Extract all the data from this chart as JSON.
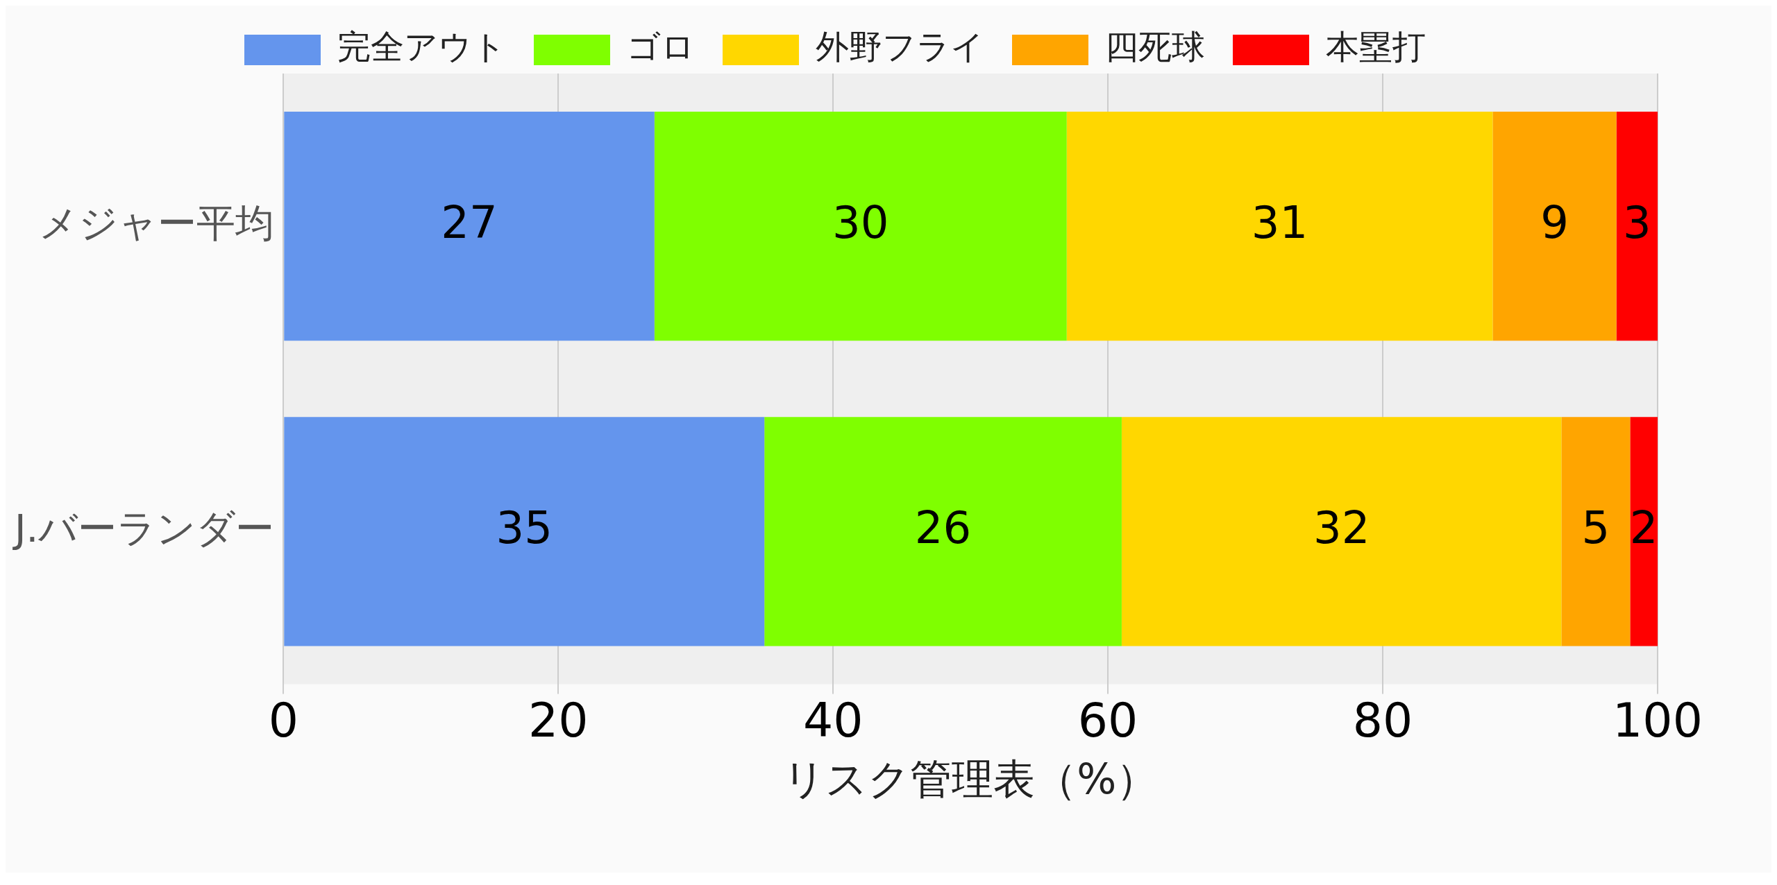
{
  "chart_data": {
    "type": "bar",
    "orientation": "horizontal",
    "stacked": true,
    "xlabel": "リスク管理表（%）",
    "categories": [
      "メジャー平均",
      "J.バーランダー"
    ],
    "series": [
      {
        "name": "完全アウト",
        "color": "#6495ed",
        "values": [
          27,
          35
        ]
      },
      {
        "name": "ゴロ",
        "color": "#7fff00",
        "values": [
          30,
          26
        ]
      },
      {
        "name": "外野フライ",
        "color": "#ffd700",
        "values": [
          31,
          32
        ]
      },
      {
        "name": "四死球",
        "color": "#ffa500",
        "values": [
          9,
          5
        ]
      },
      {
        "name": "本塁打",
        "color": "#ff0000",
        "values": [
          3,
          2
        ]
      }
    ],
    "xlim": [
      0,
      100
    ],
    "xticks": [
      0,
      20,
      40,
      60,
      80,
      100
    ],
    "grid": "x",
    "legend": "top",
    "data_labels": true
  }
}
